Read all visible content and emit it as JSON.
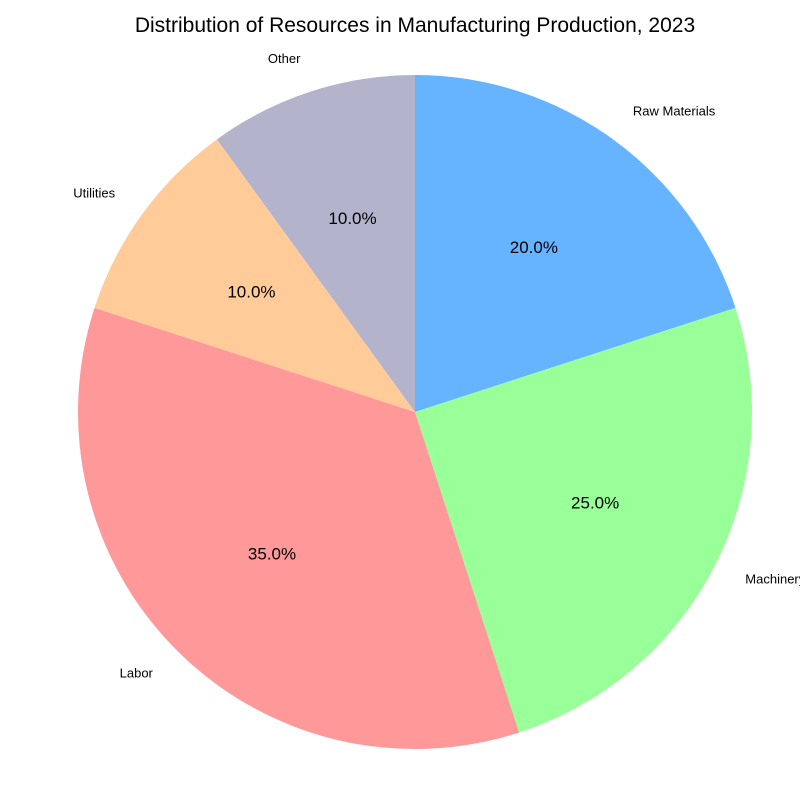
{
  "chart_data": {
    "type": "pie",
    "title": "Distribution of Resources in Manufacturing Production, 2023",
    "categories": [
      "Raw Materials",
      "Machinery",
      "Labor",
      "Utilities",
      "Other"
    ],
    "values": [
      20.0,
      25.0,
      35.0,
      10.0,
      10.0
    ],
    "percent_labels": [
      "20.0%",
      "25.0%",
      "35.0%",
      "10.0%",
      "10.0%"
    ],
    "colors": [
      "#66b3ff",
      "#99ff99",
      "#ff9999",
      "#ffcc99",
      "#b3b3cc"
    ],
    "start_angle_deg": 90,
    "direction": "clockwise",
    "legend": "none"
  }
}
